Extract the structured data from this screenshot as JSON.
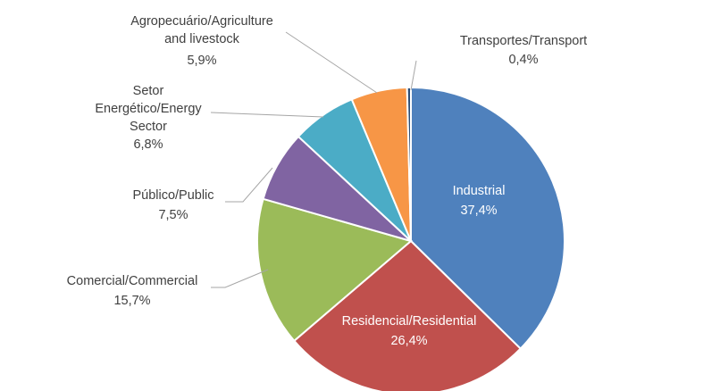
{
  "chart_data": {
    "type": "pie",
    "title": "",
    "start_angle_deg": 0,
    "direction": "clockwise",
    "slices": [
      {
        "label": "Industrial",
        "value_label": "37,4%",
        "value": 37.4,
        "color": "#4f81bd"
      },
      {
        "label": "Residencial/Residential",
        "value_label": "26,4%",
        "value": 26.4,
        "color": "#c0504d"
      },
      {
        "label": "Comercial/Commercial",
        "value_label": "15,7%",
        "value": 15.7,
        "color": "#9bbb59"
      },
      {
        "label": "Público/Public",
        "value_label": "7,5%",
        "value": 7.5,
        "color": "#8064a2"
      },
      {
        "label": "Setor Energético/Energy Sector",
        "value_label": "6,8%",
        "value": 6.8,
        "color": "#4bacc6"
      },
      {
        "label": "Agropecuário/Agriculture and livestock",
        "value_label": "5,9%",
        "value": 5.9,
        "color": "#f79646"
      },
      {
        "label": "Transportes/Transport",
        "value_label": "0,4%",
        "value": 0.4,
        "color": "#2c4d75"
      }
    ]
  }
}
